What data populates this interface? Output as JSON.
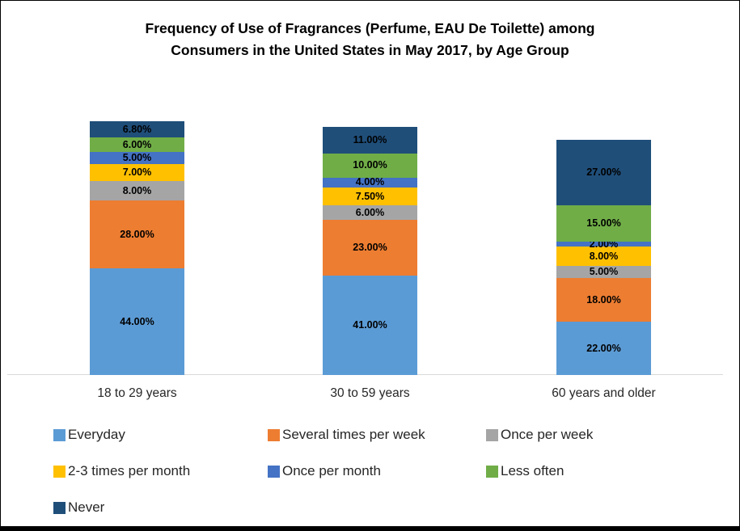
{
  "title": {
    "line1": "Frequency of Use of Fragrances (Perfume, EAU De Toilette) among",
    "line2": "Consumers in the United States in May 2017, by Age Group"
  },
  "chart_data": {
    "type": "bar",
    "stacked": true,
    "orientation": "vertical",
    "title": "Frequency of Use of Fragrances (Perfume, EAU De Toilette) among Consumers in the United States in May 2017, by Age Group",
    "xlabel": "",
    "ylabel": "",
    "value_unit": "%",
    "grid": false,
    "legend_position": "bottom-left",
    "categories": [
      "18 to 29 years",
      "30 to 59 years",
      "60 years and older"
    ],
    "series": [
      {
        "name": "Everyday",
        "color": "#5B9BD5",
        "values": [
          44,
          41,
          22
        ],
        "labels": [
          "44.00%",
          "41.00%",
          "22.00%"
        ]
      },
      {
        "name": "Several times per week",
        "color": "#ED7D31",
        "values": [
          28,
          23,
          18
        ],
        "labels": [
          "28.00%",
          "23.00%",
          "18.00%"
        ]
      },
      {
        "name": "Once per week",
        "color": "#A5A5A5",
        "values": [
          8,
          6,
          5
        ],
        "labels": [
          "8.00%",
          "6.00%",
          "5.00%"
        ]
      },
      {
        "name": "2-3 times per month",
        "color": "#FFC000",
        "values": [
          7,
          7.5,
          8
        ],
        "labels": [
          "7.00%",
          "7.50%",
          "8.00%"
        ]
      },
      {
        "name": "Once per month",
        "color": "#4472C4",
        "values": [
          5,
          4,
          2
        ],
        "labels": [
          "5.00%",
          "4.00%",
          "2.00%"
        ]
      },
      {
        "name": "Less often",
        "color": "#70AD47",
        "values": [
          6,
          10,
          15
        ],
        "labels": [
          "6.00%",
          "10.00%",
          "15.00%"
        ]
      },
      {
        "name": "Never",
        "color": "#1F4E79",
        "values": [
          6.8,
          11,
          27
        ],
        "labels": [
          "6.80%",
          "11.00%",
          "27.00%"
        ]
      }
    ]
  }
}
